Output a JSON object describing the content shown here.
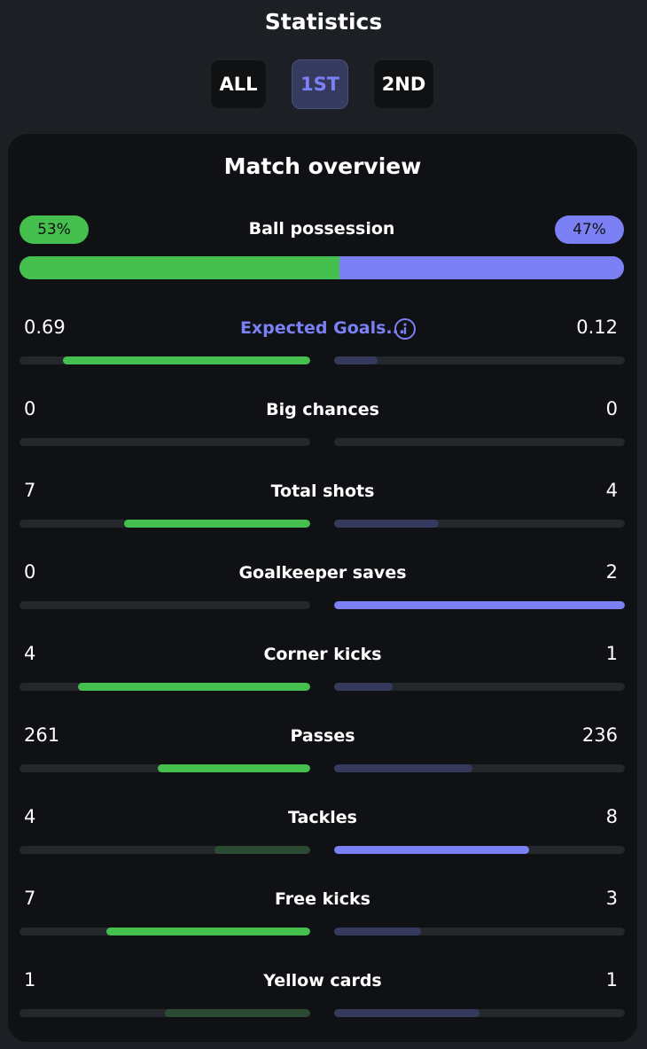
{
  "header": {
    "title": "Statistics"
  },
  "tabs": [
    {
      "label": "ALL",
      "active": false
    },
    {
      "label": "1ST",
      "active": true
    },
    {
      "label": "2ND",
      "active": false
    }
  ],
  "overview": {
    "title": "Match overview",
    "possession": {
      "label": "Ball possession",
      "home": "53%",
      "away": "47%",
      "home_fraction": 0.53
    }
  },
  "stats": [
    {
      "label": "Expected Goals...",
      "home": "0.69",
      "away": "0.12",
      "home_fraction": 0.85,
      "away_fraction": 0.15,
      "home_highlight": true,
      "away_highlight": false,
      "has_info": true
    },
    {
      "label": "Big chances",
      "home": "0",
      "away": "0",
      "home_fraction": 0,
      "away_fraction": 0,
      "home_highlight": false,
      "away_highlight": false
    },
    {
      "label": "Total shots",
      "home": "7",
      "away": "4",
      "home_fraction": 0.64,
      "away_fraction": 0.36,
      "home_highlight": true,
      "away_highlight": false
    },
    {
      "label": "Goalkeeper saves",
      "home": "0",
      "away": "2",
      "home_fraction": 0,
      "away_fraction": 1.0,
      "home_highlight": false,
      "away_highlight": true
    },
    {
      "label": "Corner kicks",
      "home": "4",
      "away": "1",
      "home_fraction": 0.8,
      "away_fraction": 0.2,
      "home_highlight": true,
      "away_highlight": false
    },
    {
      "label": "Passes",
      "home": "261",
      "away": "236",
      "home_fraction": 0.525,
      "away_fraction": 0.475,
      "home_highlight": true,
      "away_highlight": false
    },
    {
      "label": "Tackles",
      "home": "4",
      "away": "8",
      "home_fraction": 0.33,
      "away_fraction": 0.67,
      "home_highlight": false,
      "away_highlight": true
    },
    {
      "label": "Free kicks",
      "home": "7",
      "away": "3",
      "home_fraction": 0.7,
      "away_fraction": 0.3,
      "home_highlight": true,
      "away_highlight": false
    },
    {
      "label": "Yellow cards",
      "home": "1",
      "away": "1",
      "home_fraction": 0.5,
      "away_fraction": 0.5,
      "home_highlight": false,
      "away_highlight": false
    }
  ],
  "colors": {
    "home": "#45c04e",
    "away": "#7b80f4",
    "home_dim": "#2b4a32",
    "away_dim": "#363a5e"
  },
  "icons": {
    "info": "info-icon"
  }
}
